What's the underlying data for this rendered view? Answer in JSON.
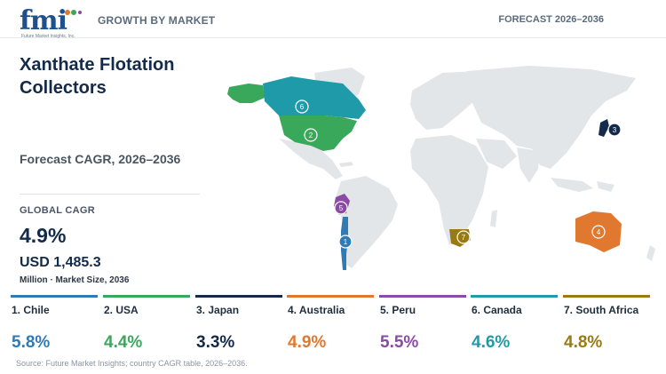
{
  "header": {
    "logo_text": "fmi",
    "logo_tagline": "Future Market Insights, Inc.",
    "left_label": "GROWTH BY MARKET",
    "right_label": "FORECAST 2026–2036"
  },
  "title": "Xanthate Flotation Collectors",
  "cagr_caption": "Forecast CAGR, 2026–2036",
  "global": {
    "label": "GLOBAL CAGR",
    "value": "4.9%",
    "market_size": "USD 1,485.3",
    "market_note": "Million · Market Size, 2036"
  },
  "countries": [
    {
      "rank": "1",
      "label": "1. Chile",
      "cagr": "5.8%",
      "color": "#2f7bb5"
    },
    {
      "rank": "2",
      "label": "2. USA",
      "cagr": "4.4%",
      "color": "#3aa85a"
    },
    {
      "rank": "3",
      "label": "3. Japan",
      "cagr": "3.3%",
      "color": "#132a4a"
    },
    {
      "rank": "4",
      "label": "4. Australia",
      "cagr": "4.9%",
      "color": "#e0782f"
    },
    {
      "rank": "5",
      "label": "5. Peru",
      "cagr": "5.5%",
      "color": "#8b4aa6"
    },
    {
      "rank": "6",
      "label": "6. Canada",
      "cagr": "4.6%",
      "color": "#1f9aa8"
    },
    {
      "rank": "7",
      "label": "7. South Africa",
      "cagr": "4.8%",
      "color": "#9a7a12"
    }
  ],
  "map": {
    "land_color": "#e3e6e9",
    "highlight_colors": {
      "canada": "#1f9aa8",
      "alaska": "#3aa85a",
      "usa": "#3aa85a",
      "peru": "#8b4aa6",
      "chile": "#2f7bb5",
      "south_africa": "#9a7a12",
      "australia": "#e0782f",
      "japan": "#132a4a"
    }
  },
  "source": "Source: Future Market Insights; country CAGR table, 2026–2036."
}
